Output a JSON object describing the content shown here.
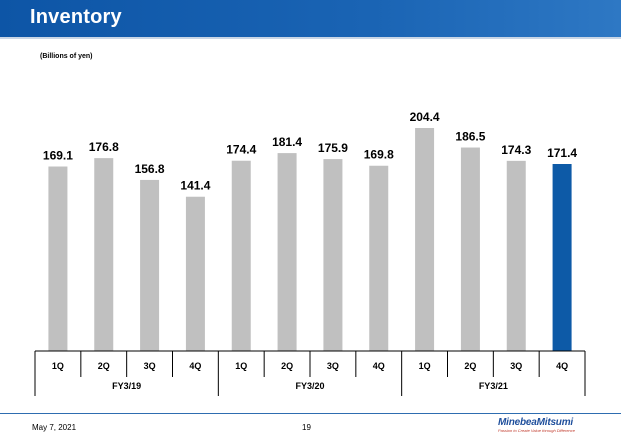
{
  "header": {
    "title": "Inventory"
  },
  "unit_note": "(Billions of yen)",
  "footer": {
    "date": "May 7, 2021",
    "page": "19",
    "logo_name": "MinebeaMitsumi",
    "logo_tagline": "Passion to Create Value through Difference"
  },
  "colors": {
    "bar": "#c0c0c0",
    "highlight": "#0d5aa7",
    "header": "#0d55a6"
  },
  "chart_data": {
    "type": "bar",
    "title": "Inventory",
    "unit": "(Billions of yen)",
    "categories": [
      "1Q",
      "2Q",
      "3Q",
      "4Q",
      "1Q",
      "2Q",
      "3Q",
      "4Q",
      "1Q",
      "2Q",
      "3Q",
      "4Q"
    ],
    "groups": [
      {
        "label": "FY3/19",
        "count": 4
      },
      {
        "label": "FY3/20",
        "count": 4
      },
      {
        "label": "FY3/21",
        "count": 4
      }
    ],
    "values": [
      169.1,
      176.8,
      156.8,
      141.4,
      174.4,
      181.4,
      175.9,
      169.8,
      204.4,
      186.5,
      174.3,
      171.4
    ],
    "labels": [
      "169.1",
      "176.8",
      "156.8",
      "141.4",
      "174.4",
      "181.4",
      "175.9",
      "169.8",
      "204.4",
      "186.5",
      "174.3",
      "171.4"
    ],
    "highlight_index": 11,
    "xlabel": "",
    "ylabel": "",
    "ylim": [
      0,
      204.4
    ],
    "grid": false,
    "legend": "none"
  }
}
